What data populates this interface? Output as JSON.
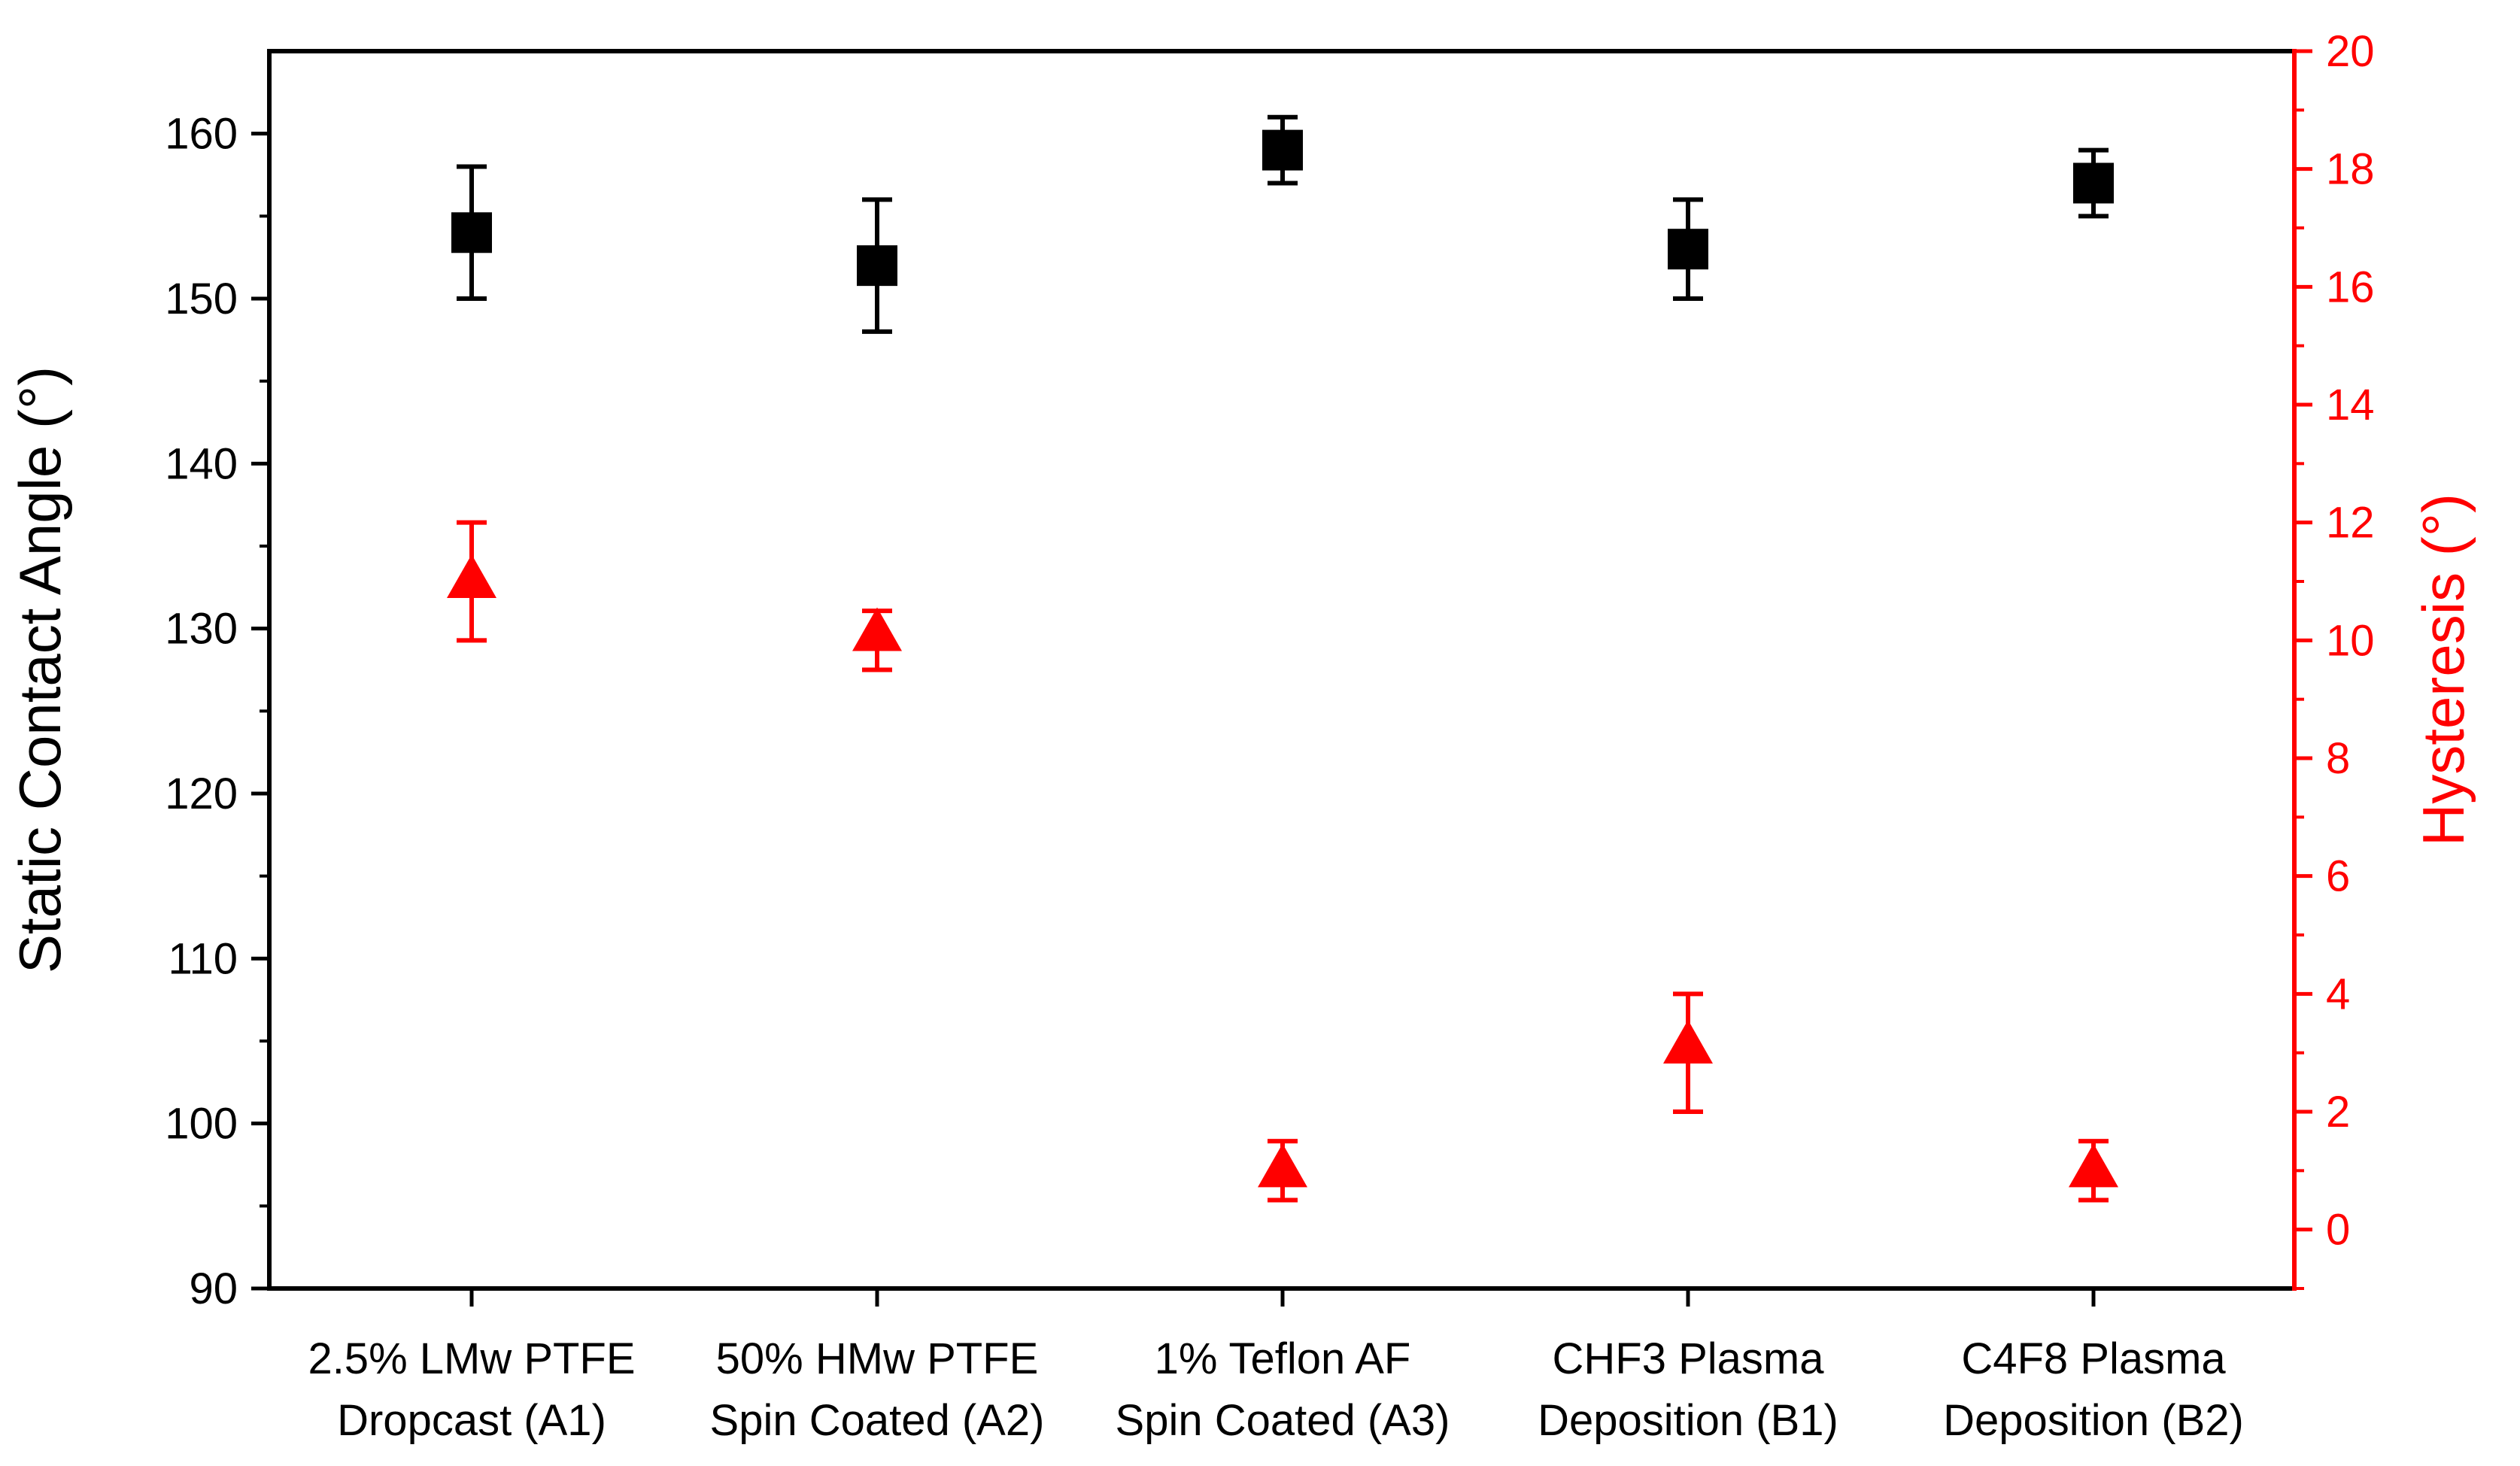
{
  "chart_data": {
    "type": "scatter",
    "categories": [
      [
        "2.5% LMw PTFE",
        "Dropcast (A1)"
      ],
      [
        "50% HMw PTFE",
        "Spin Coated (A2)"
      ],
      [
        "1% Teflon AF",
        "Spin Coated (A3)"
      ],
      [
        "CHF3 Plasma",
        "Deposition (B1)"
      ],
      [
        "C4F8 Plasma",
        "Deposition (B2)"
      ]
    ],
    "left_axis": {
      "label": "Static Contact Angle (°)",
      "range": [
        90,
        165
      ],
      "major_ticks": [
        90,
        100,
        110,
        120,
        130,
        140,
        150,
        160
      ],
      "tick_labels": [
        "90",
        "100",
        "110",
        "120",
        "130",
        "140",
        "150",
        "160"
      ],
      "color": "#000000"
    },
    "right_axis": {
      "label": "Hysteresis (°)",
      "range": [
        -1,
        20
      ],
      "major_ticks": [
        0,
        2,
        4,
        6,
        8,
        10,
        12,
        14,
        16,
        18,
        20
      ],
      "tick_labels": [
        "0",
        "2",
        "4",
        "6",
        "8",
        "10",
        "12",
        "14",
        "16",
        "18",
        "20"
      ],
      "color": "#ff0000"
    },
    "series": [
      {
        "name": "Static Contact Angle",
        "axis": "left",
        "marker": "square",
        "color": "#000000",
        "values": [
          154,
          152,
          159,
          153,
          157
        ],
        "error_low": [
          150,
          148,
          157,
          150,
          155
        ],
        "error_high": [
          158,
          156,
          161,
          156,
          159
        ]
      },
      {
        "name": "Hysteresis",
        "axis": "right",
        "marker": "triangle",
        "color": "#ff0000",
        "values": [
          11,
          10.1,
          1,
          3.1,
          1
        ],
        "error_low": [
          10,
          9.5,
          0.5,
          2,
          0.5
        ],
        "error_high": [
          12,
          10.5,
          1.5,
          4,
          1.5
        ]
      }
    ]
  }
}
